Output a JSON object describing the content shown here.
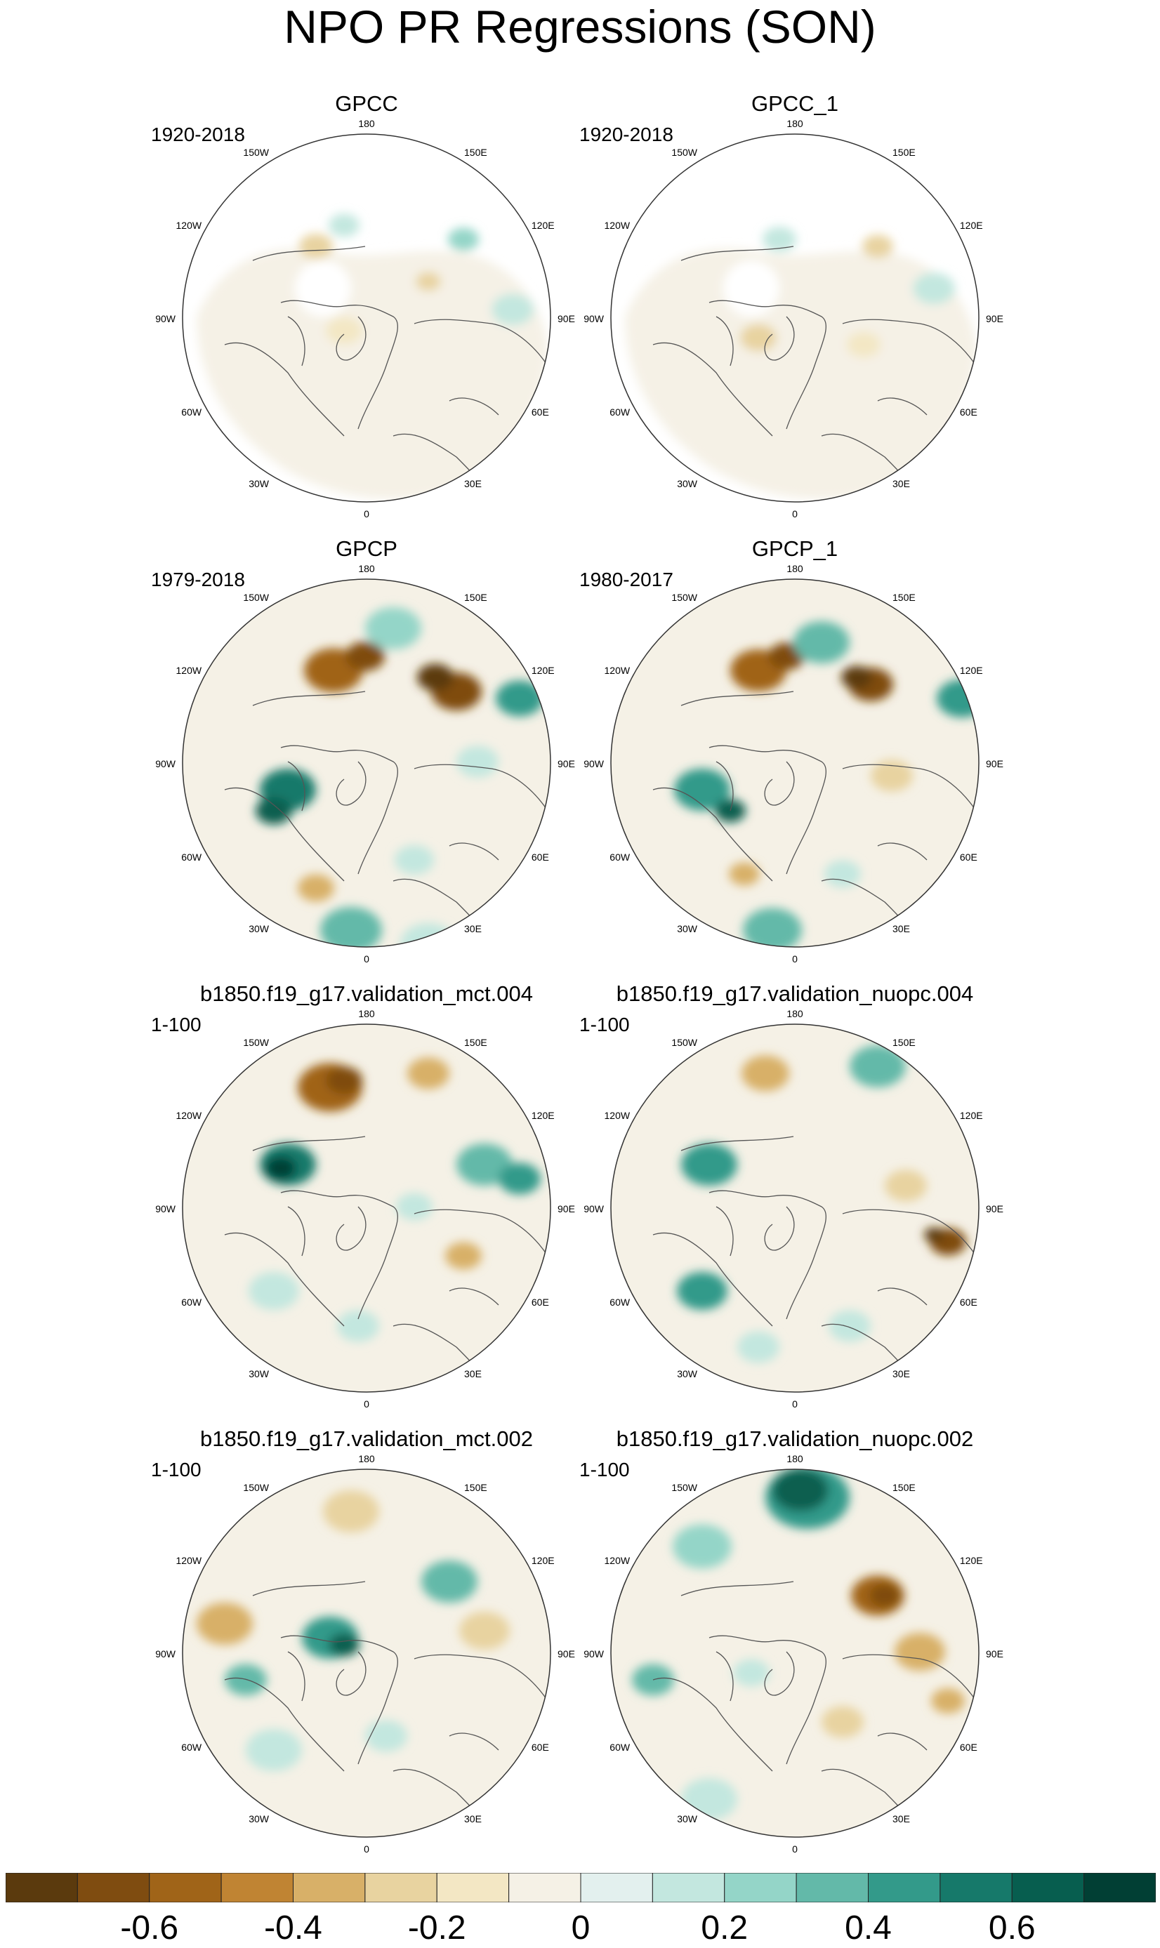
{
  "title": "NPO PR Regressions (SON)",
  "longitude_labels": {
    "top": "180",
    "upper_left": "150W",
    "upper_right": "150E",
    "left_high": "120W",
    "right_high": "120E",
    "left_mid": "90W",
    "right_mid": "90E",
    "left_low": "60W",
    "right_low": "60E",
    "lower_left": "30W",
    "lower_right": "30E",
    "bottom": "0"
  },
  "panels": [
    {
      "title": "GPCC",
      "period": "1920-2018"
    },
    {
      "title": "GPCC_1",
      "period": "1920-2018"
    },
    {
      "title": "GPCP",
      "period": "1979-2018"
    },
    {
      "title": "GPCP_1",
      "period": "1980-2017"
    },
    {
      "title": "b1850.f19_g17.validation_mct.004",
      "period": "1-100"
    },
    {
      "title": "b1850.f19_g17.validation_nuopc.004",
      "period": "1-100"
    },
    {
      "title": "b1850.f19_g17.validation_mct.002",
      "period": "1-100"
    },
    {
      "title": "b1850.f19_g17.validation_nuopc.002",
      "period": "1-100"
    }
  ],
  "colorbar": {
    "colors": [
      "#5b3a0d",
      "#7f4c10",
      "#a06418",
      "#c08433",
      "#d8b068",
      "#e8d3a0",
      "#f3e7c4",
      "#f5f1e6",
      "#e3f0ee",
      "#c3e7df",
      "#94d5c8",
      "#63b9a9",
      "#339a8a",
      "#16796a",
      "#075e4f",
      "#013f34"
    ],
    "labels": [
      "-0.6",
      "-0.4",
      "-0.2",
      "0",
      "0.2",
      "0.4",
      "0.6"
    ],
    "label_values": [
      -0.6,
      -0.4,
      -0.2,
      0,
      0.2,
      0.4,
      0.6
    ],
    "range": [
      -0.8,
      0.8
    ]
  }
}
